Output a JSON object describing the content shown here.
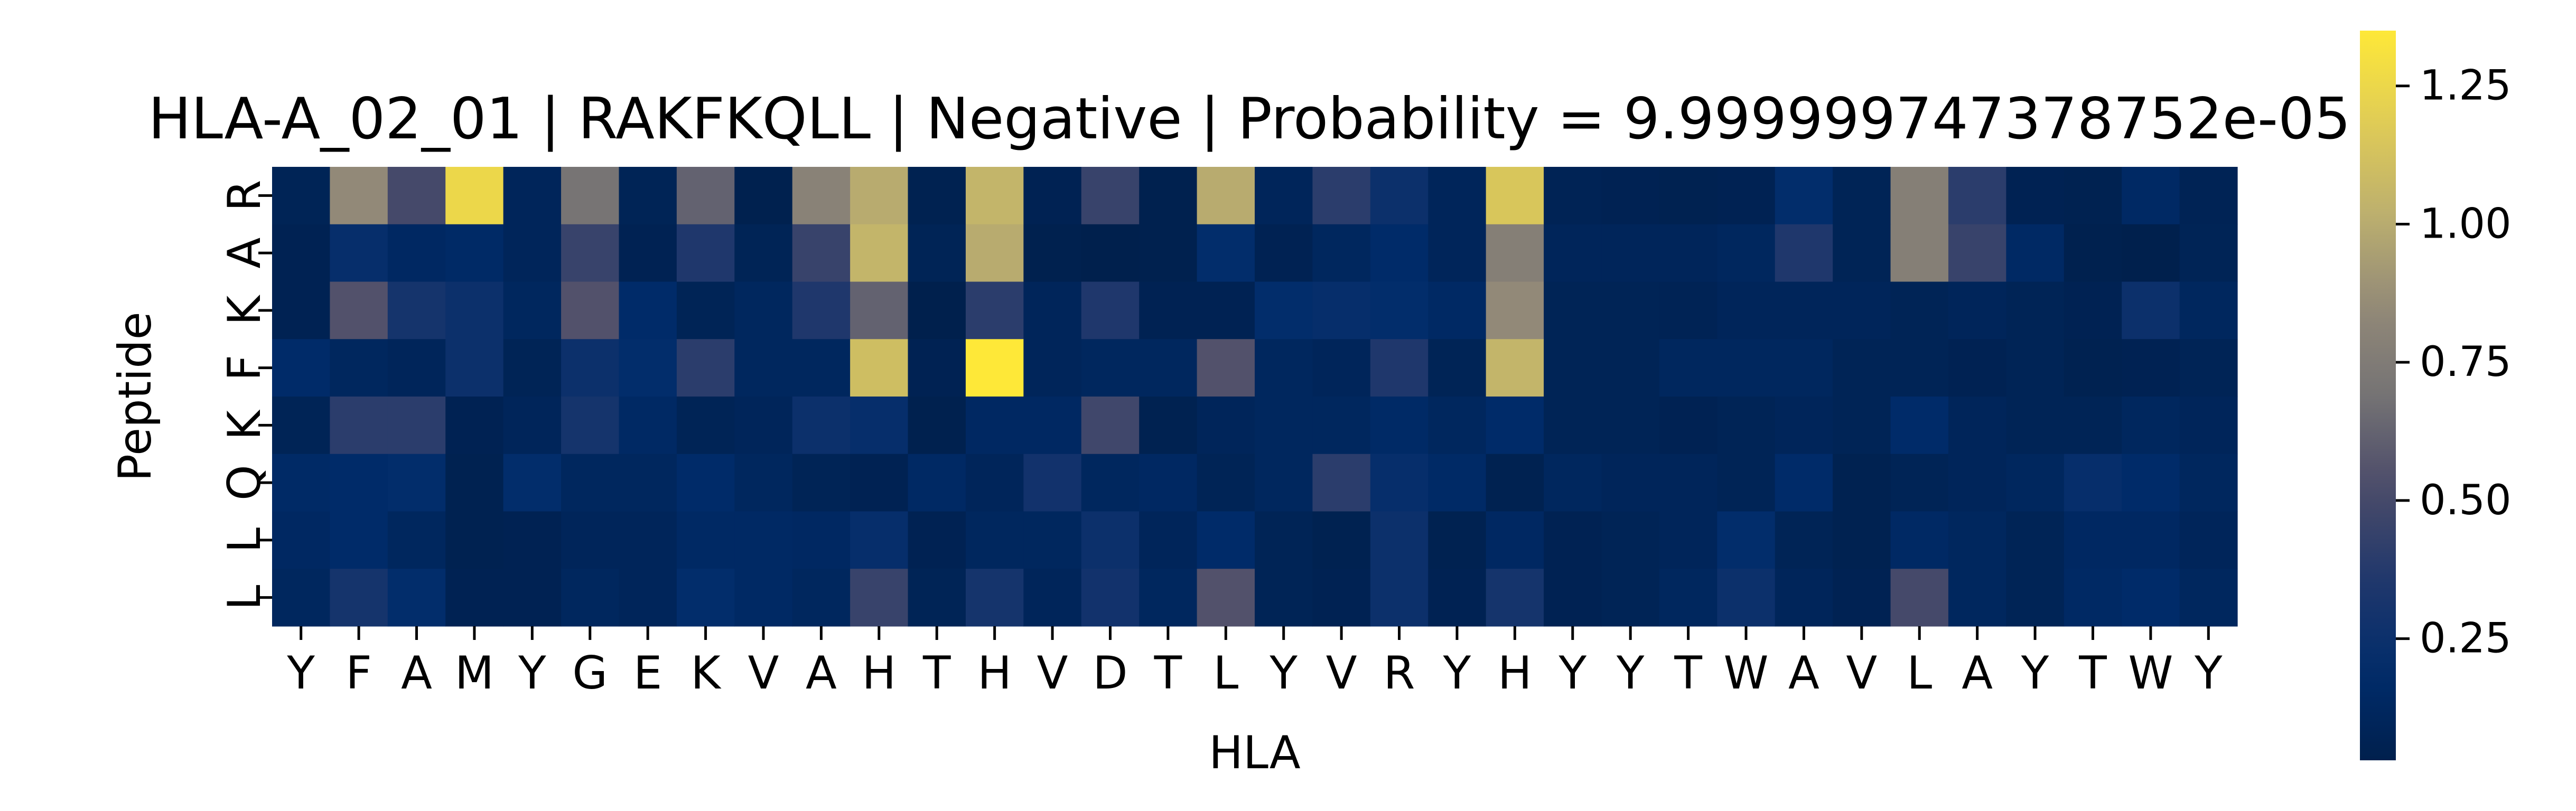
{
  "chart_data": {
    "type": "heatmap",
    "title": "HLA-A_02_01 | RAKFKQLL | Negative | Probability = 9.999999747378752e-05",
    "xlabel": "HLA",
    "ylabel": "Peptide",
    "x_categories": [
      "Y",
      "F",
      "A",
      "M",
      "Y",
      "G",
      "E",
      "K",
      "V",
      "A",
      "H",
      "T",
      "H",
      "V",
      "D",
      "T",
      "L",
      "Y",
      "V",
      "R",
      "Y",
      "H",
      "Y",
      "Y",
      "T",
      "W",
      "A",
      "V",
      "L",
      "A",
      "Y",
      "T",
      "W",
      "Y"
    ],
    "y_categories": [
      "R",
      "A",
      "K",
      "F",
      "K",
      "Q",
      "L",
      "L"
    ],
    "values": [
      [
        0.08,
        0.85,
        0.5,
        1.25,
        0.1,
        0.7,
        0.08,
        0.62,
        0.04,
        0.8,
        1.0,
        0.05,
        1.05,
        0.06,
        0.45,
        0.04,
        1.0,
        0.1,
        0.4,
        0.25,
        0.1,
        1.15,
        0.07,
        0.06,
        0.05,
        0.06,
        0.2,
        0.08,
        0.78,
        0.4,
        0.06,
        0.05,
        0.15,
        0.07
      ],
      [
        0.06,
        0.22,
        0.14,
        0.16,
        0.1,
        0.45,
        0.06,
        0.35,
        0.08,
        0.45,
        1.05,
        0.08,
        1.0,
        0.04,
        0.03,
        0.04,
        0.2,
        0.06,
        0.12,
        0.18,
        0.1,
        0.78,
        0.1,
        0.1,
        0.1,
        0.12,
        0.35,
        0.08,
        0.78,
        0.45,
        0.15,
        0.04,
        0.03,
        0.08
      ],
      [
        0.06,
        0.55,
        0.3,
        0.25,
        0.12,
        0.55,
        0.18,
        0.08,
        0.12,
        0.35,
        0.62,
        0.03,
        0.4,
        0.1,
        0.35,
        0.06,
        0.06,
        0.2,
        0.22,
        0.2,
        0.15,
        0.85,
        0.08,
        0.08,
        0.07,
        0.1,
        0.1,
        0.1,
        0.08,
        0.1,
        0.08,
        0.06,
        0.25,
        0.12
      ],
      [
        0.18,
        0.12,
        0.1,
        0.25,
        0.08,
        0.25,
        0.2,
        0.4,
        0.12,
        0.12,
        1.1,
        0.06,
        1.35,
        0.1,
        0.12,
        0.12,
        0.55,
        0.12,
        0.1,
        0.35,
        0.08,
        1.05,
        0.08,
        0.08,
        0.12,
        0.12,
        0.12,
        0.08,
        0.08,
        0.06,
        0.08,
        0.05,
        0.06,
        0.08
      ],
      [
        0.08,
        0.4,
        0.4,
        0.06,
        0.1,
        0.3,
        0.15,
        0.08,
        0.1,
        0.25,
        0.22,
        0.04,
        0.14,
        0.14,
        0.48,
        0.05,
        0.1,
        0.12,
        0.12,
        0.16,
        0.12,
        0.18,
        0.08,
        0.08,
        0.06,
        0.08,
        0.1,
        0.08,
        0.18,
        0.1,
        0.08,
        0.08,
        0.12,
        0.1
      ],
      [
        0.16,
        0.18,
        0.2,
        0.05,
        0.2,
        0.12,
        0.12,
        0.18,
        0.12,
        0.08,
        0.06,
        0.15,
        0.1,
        0.28,
        0.12,
        0.14,
        0.08,
        0.12,
        0.4,
        0.22,
        0.16,
        0.05,
        0.12,
        0.1,
        0.1,
        0.08,
        0.18,
        0.05,
        0.08,
        0.1,
        0.12,
        0.22,
        0.18,
        0.12
      ],
      [
        0.14,
        0.18,
        0.12,
        0.05,
        0.06,
        0.1,
        0.1,
        0.15,
        0.15,
        0.14,
        0.22,
        0.06,
        0.12,
        0.12,
        0.25,
        0.1,
        0.18,
        0.08,
        0.05,
        0.25,
        0.05,
        0.14,
        0.06,
        0.08,
        0.1,
        0.2,
        0.08,
        0.05,
        0.15,
        0.12,
        0.08,
        0.14,
        0.14,
        0.1
      ],
      [
        0.12,
        0.3,
        0.2,
        0.06,
        0.06,
        0.12,
        0.1,
        0.2,
        0.15,
        0.12,
        0.45,
        0.08,
        0.3,
        0.1,
        0.28,
        0.12,
        0.55,
        0.08,
        0.06,
        0.25,
        0.06,
        0.3,
        0.06,
        0.08,
        0.12,
        0.25,
        0.1,
        0.06,
        0.5,
        0.12,
        0.08,
        0.15,
        0.18,
        0.12
      ]
    ],
    "colorbar": {
      "colormap": "cividis",
      "vmin": 0.03,
      "vmax": 1.35,
      "ticks": [
        0.25,
        0.5,
        0.75,
        1.0,
        1.25
      ],
      "tick_labels": [
        "0.25",
        "0.50",
        "0.75",
        "1.00",
        "1.25"
      ]
    },
    "grid": false
  }
}
